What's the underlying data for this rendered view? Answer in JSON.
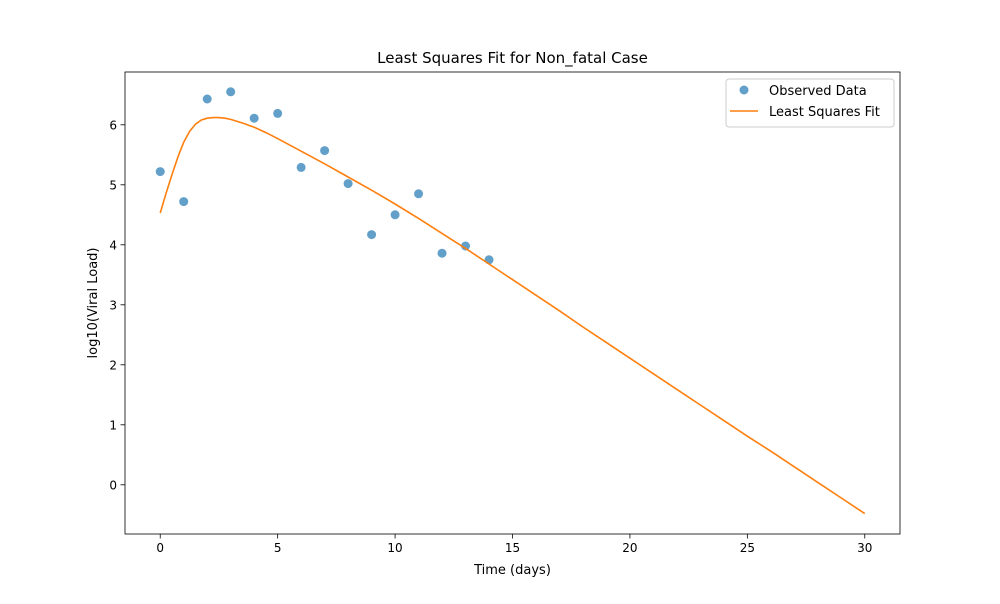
{
  "chart_data": {
    "type": "line",
    "title": "Least Squares Fit for Non_fatal Case",
    "xlabel": "Time (days)",
    "ylabel": "log10(Viral Load)",
    "xlim": [
      -1.5,
      31.5
    ],
    "ylim": [
      -0.82,
      6.88
    ],
    "xticks": [
      0,
      5,
      10,
      15,
      20,
      25,
      30
    ],
    "yticks": [
      0,
      1,
      2,
      3,
      4,
      5,
      6
    ],
    "grid": false,
    "legend_position": "top-right",
    "series": [
      {
        "name": "Observed Data",
        "kind": "scatter",
        "color": "#1f77b4",
        "x": [
          0,
          1,
          2,
          3,
          4,
          5,
          6,
          7,
          8,
          9,
          10,
          11,
          12,
          13,
          14
        ],
        "y": [
          5.22,
          4.72,
          6.43,
          6.55,
          6.11,
          6.19,
          5.29,
          5.57,
          5.02,
          4.17,
          4.5,
          4.85,
          3.86,
          3.98,
          3.75
        ]
      },
      {
        "name": "Least Squares Fit",
        "kind": "line",
        "color": "#ff7f0e",
        "x": [
          0,
          0.25,
          0.5,
          0.75,
          1,
          1.25,
          1.5,
          1.75,
          2,
          2.25,
          2.5,
          2.75,
          3,
          3.5,
          4,
          4.5,
          5,
          6,
          7,
          8,
          9,
          10,
          11,
          12,
          13,
          14,
          15,
          16,
          17,
          18,
          19,
          20,
          21,
          22,
          23,
          24,
          25,
          26,
          27,
          28,
          29,
          30
        ],
        "y": [
          4.53,
          4.86,
          5.17,
          5.46,
          5.71,
          5.89,
          6.01,
          6.08,
          6.11,
          6.12,
          6.12,
          6.11,
          6.09,
          6.03,
          5.96,
          5.87,
          5.77,
          5.56,
          5.35,
          5.13,
          4.91,
          4.68,
          4.44,
          4.19,
          3.94,
          3.68,
          3.42,
          3.16,
          2.9,
          2.63,
          2.37,
          2.11,
          1.85,
          1.59,
          1.33,
          1.07,
          0.81,
          0.56,
          0.3,
          0.04,
          -0.22,
          -0.48
        ]
      }
    ]
  }
}
